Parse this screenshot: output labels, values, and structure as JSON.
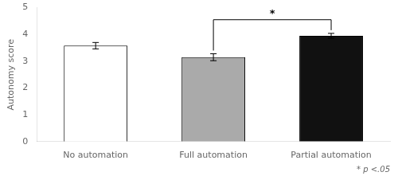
{
  "chart_data": {
    "type": "bar",
    "categories": [
      "No automation",
      "Full automation",
      "Partial automation"
    ],
    "values": [
      3.58,
      3.15,
      3.95
    ],
    "errors": [
      0.12,
      0.13,
      0.09
    ],
    "colors": [
      "white",
      "#aaaaaa",
      "#111111"
    ],
    "ylabel": "Autonomy score",
    "ylim": [
      0,
      5
    ],
    "yticks": [
      0,
      1,
      2,
      3,
      4,
      5
    ],
    "grid": false,
    "bracket": {
      "between": [
        "Full automation",
        "Partial automation"
      ],
      "y": 4.55,
      "label": "*"
    },
    "note": "* p <.05"
  }
}
